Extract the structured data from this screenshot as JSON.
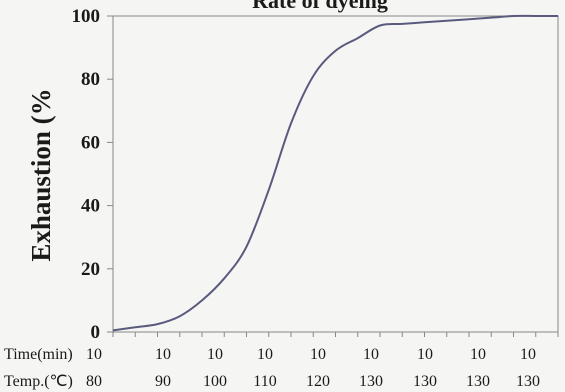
{
  "chart_data": {
    "type": "line",
    "title": "Rate of dyeing",
    "ylabel": "Exhaustion (%",
    "xlabel": "",
    "ylim": [
      0,
      100
    ],
    "y_ticks": [
      "0",
      "20",
      "40",
      "60",
      "80",
      "100"
    ],
    "x_rows": [
      {
        "label": "Time(min)",
        "values": [
          "10",
          "10",
          "10",
          "10",
          "10",
          "10",
          "10",
          "10",
          "10"
        ]
      },
      {
        "label": "Temp.(℃)",
        "values": [
          "80",
          "90",
          "100",
          "110",
          "120",
          "130",
          "130",
          "130",
          "130"
        ]
      }
    ],
    "x": [
      0,
      0.5,
      1,
      1.5,
      2,
      2.5,
      3,
      3.5,
      4,
      4.5,
      5,
      5.5,
      6,
      6.5,
      7,
      7.5,
      8,
      8.5,
      9,
      9.5,
      10
    ],
    "series": [
      {
        "values": [
          0.5,
          1.5,
          2.5,
          5,
          10,
          17,
          27,
          45,
          66,
          81,
          89,
          93,
          97,
          97.5,
          98,
          98.5,
          99,
          99.5,
          100,
          100,
          100
        ]
      }
    ],
    "grid": false,
    "line_color": "#5a5a7e"
  }
}
